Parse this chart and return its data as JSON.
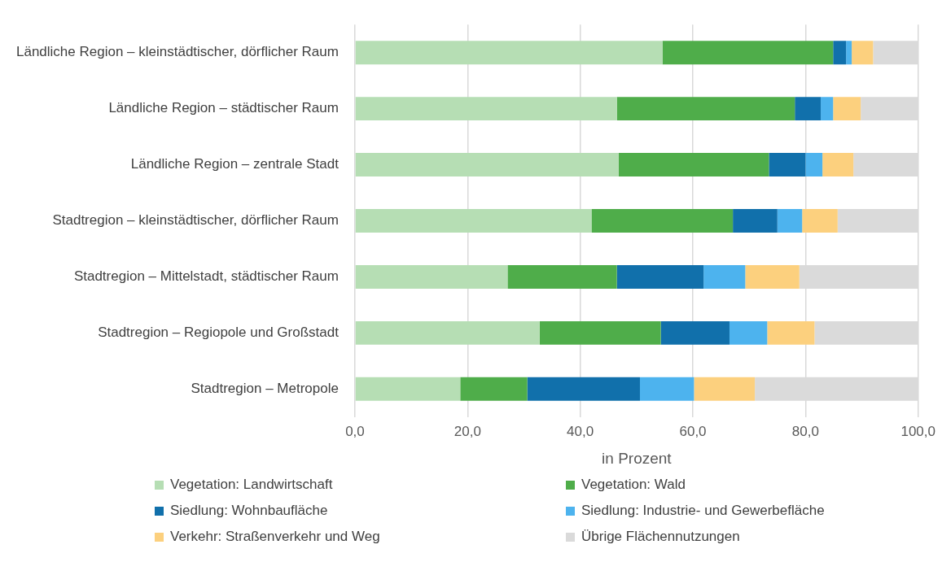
{
  "chart_data": {
    "type": "bar",
    "orientation": "horizontal",
    "stacked": true,
    "xlabel": "in Prozent",
    "categories": [
      "Ländliche Region – kleinstädtischer, dörflicher Raum",
      "Ländliche Region – städtischer Raum",
      "Ländliche Region – zentrale Stadt",
      "Stadtregion – kleinstädtischer, dörflicher Raum",
      "Stadtregion – Mittelstadt, städtischer Raum",
      "Stadtregion – Regiopole und Großstadt",
      "Stadtregion – Metropole"
    ],
    "series": [
      {
        "name": "Vegetation: Landwirtschaft",
        "color": "#b6deb4",
        "values": [
          54.6,
          46.5,
          46.8,
          42.0,
          27.1,
          32.8,
          18.7
        ]
      },
      {
        "name": "Vegetation: Wald",
        "color": "#4fad4a",
        "values": [
          30.3,
          31.6,
          26.7,
          25.1,
          19.4,
          21.5,
          11.9
        ]
      },
      {
        "name": "Siedlung: Wohnbaufläche",
        "color": "#1170ab",
        "values": [
          2.3,
          4.6,
          6.5,
          7.9,
          15.4,
          12.2,
          20.0
        ]
      },
      {
        "name": "Siedlung: Industrie- und Gewerbefläche",
        "color": "#4db3ee",
        "values": [
          1.0,
          2.2,
          3.0,
          4.4,
          7.4,
          6.7,
          9.6
        ]
      },
      {
        "name": "Verkehr: Straßenverkehr und Weg",
        "color": "#fcd07e",
        "values": [
          3.8,
          4.9,
          5.5,
          6.3,
          9.6,
          8.4,
          10.8
        ]
      },
      {
        "name": "Übrige Flächennutzungen",
        "color": "#dadada",
        "values": [
          8.0,
          10.2,
          11.5,
          14.3,
          21.1,
          18.4,
          29.0
        ]
      }
    ],
    "xlim": [
      0,
      100
    ],
    "xticks": [
      {
        "value": 0,
        "label": "0,0"
      },
      {
        "value": 20,
        "label": "20,0"
      },
      {
        "value": 40,
        "label": "40,0"
      },
      {
        "value": 60,
        "label": "60,0"
      },
      {
        "value": 80,
        "label": "80,0"
      },
      {
        "value": 100,
        "label": "100,0"
      }
    ],
    "grid": "x",
    "legend": "bottom"
  }
}
